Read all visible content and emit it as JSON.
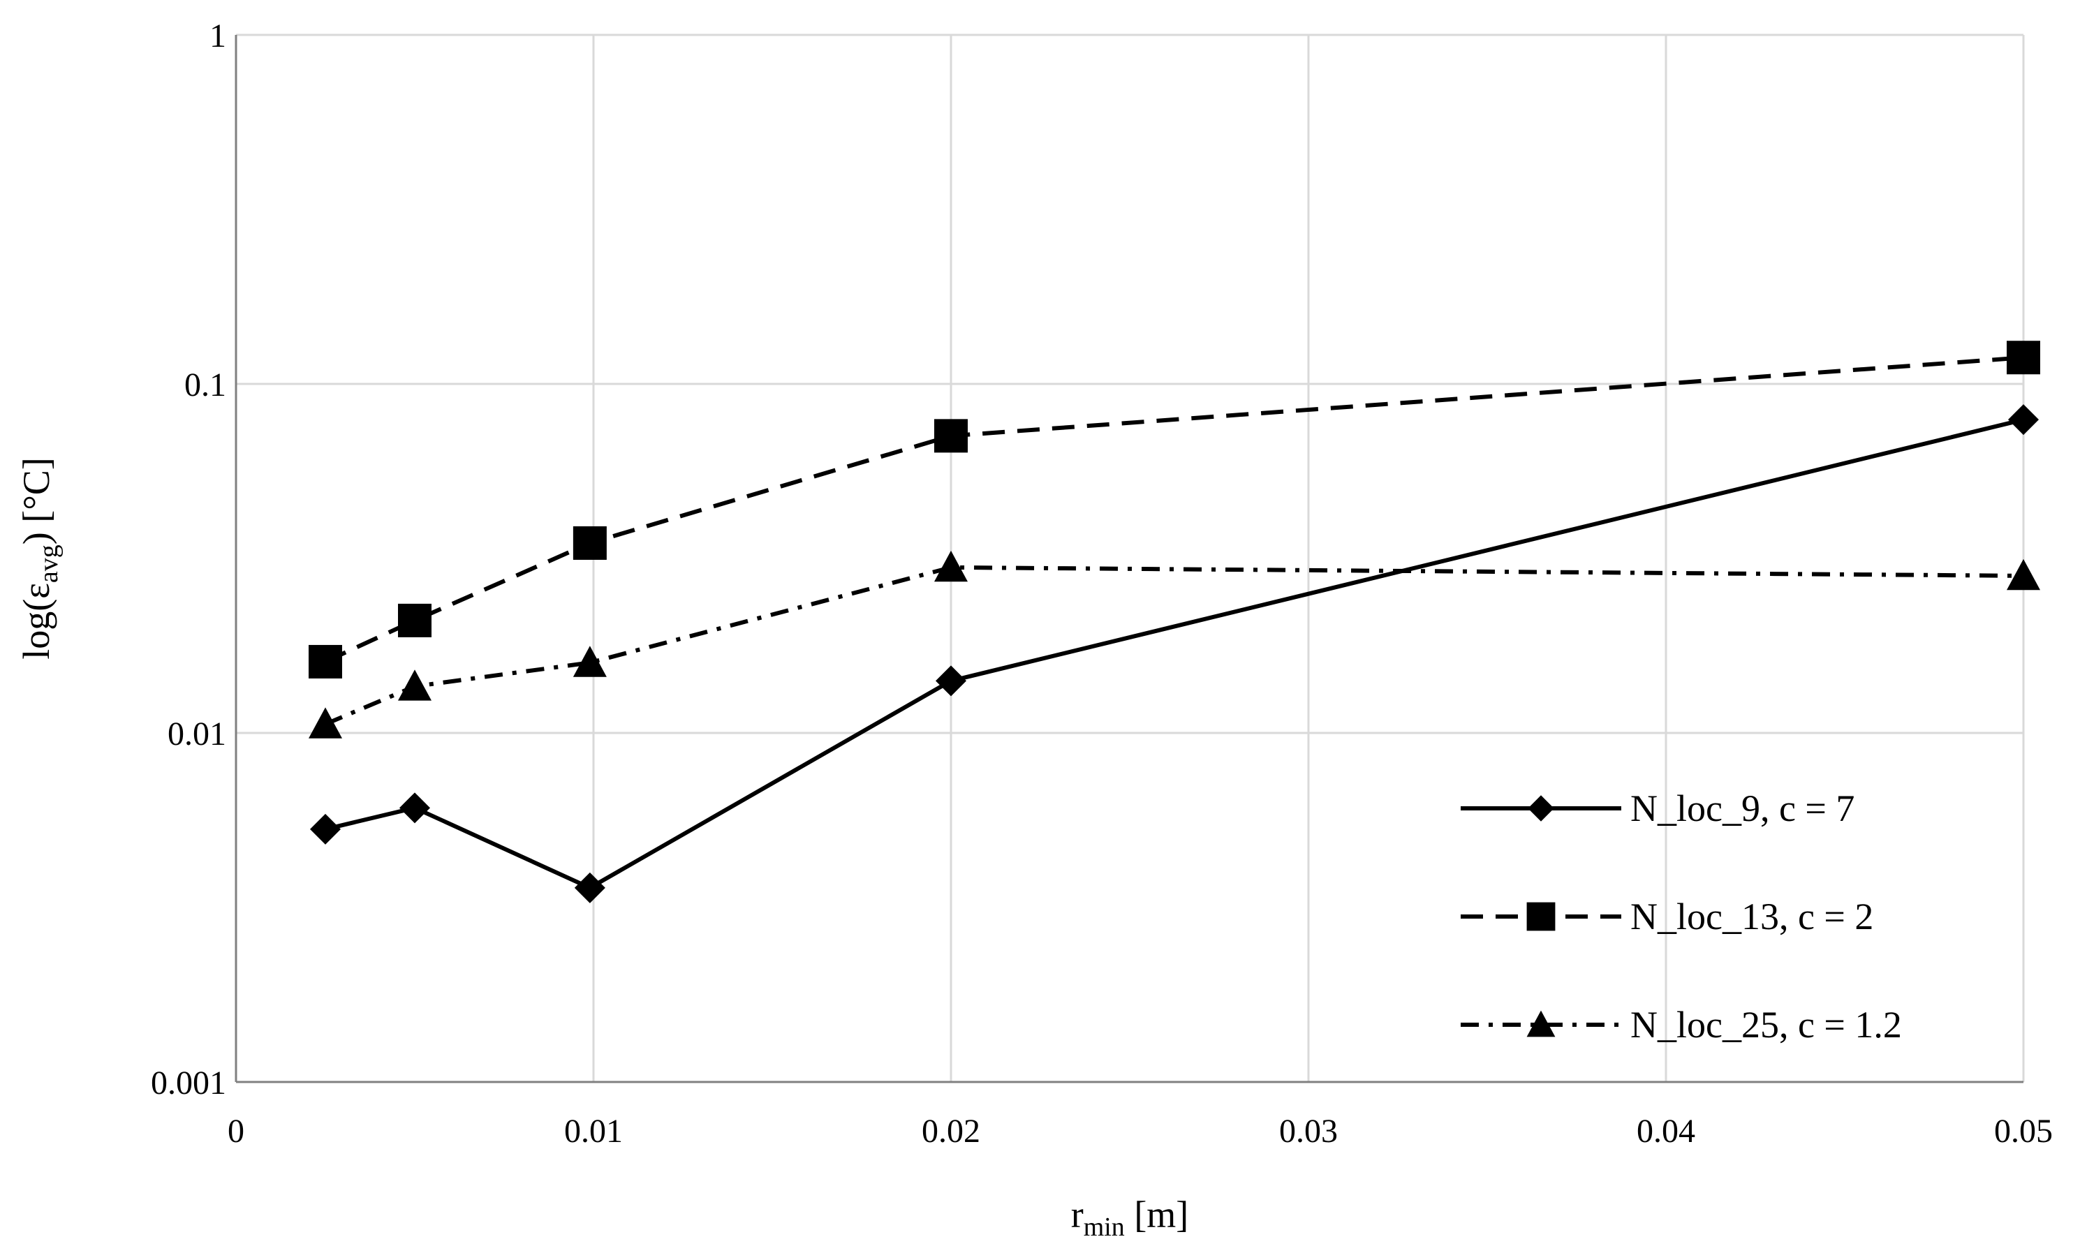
{
  "chart_data": {
    "type": "line",
    "xlabel": {
      "main": "r",
      "sub": "min",
      "rest": " [m]"
    },
    "ylabel": {
      "prefix": "log(ε",
      "sub": "avg",
      "suffix": ") [°C]"
    },
    "x_scale": "linear",
    "y_scale": "log",
    "xlim": [
      0,
      0.05
    ],
    "ylim": [
      0.001,
      1
    ],
    "x_ticks": [
      0,
      0.01,
      0.02,
      0.03,
      0.04,
      0.05
    ],
    "x_tick_labels": [
      "0",
      "0.01",
      "0.02",
      "0.03",
      "0.04",
      "0.05"
    ],
    "y_ticks": [
      0.001,
      0.01,
      0.1,
      1
    ],
    "y_tick_labels": [
      "0.001",
      "0.01",
      "0.1",
      "1"
    ],
    "grid": true,
    "legend_position": "bottom-right",
    "series": [
      {
        "name": "N_loc_9, c = 7",
        "line_style": "solid",
        "marker": "diamond",
        "x": [
          0.0025,
          0.005,
          0.0099,
          0.02,
          0.05
        ],
        "y": [
          0.0053,
          0.0061,
          0.0036,
          0.0141,
          0.079
        ]
      },
      {
        "name": "N_loc_13, c = 2",
        "line_style": "dashed",
        "marker": "square",
        "x": [
          0.0025,
          0.005,
          0.0099,
          0.02,
          0.05
        ],
        "y": [
          0.016,
          0.021,
          0.035,
          0.071,
          0.119
        ]
      },
      {
        "name": "N_loc_25, c = 1.2",
        "line_style": "dashdot",
        "marker": "triangle",
        "x": [
          0.0025,
          0.005,
          0.0099,
          0.02,
          0.05
        ],
        "y": [
          0.0106,
          0.0136,
          0.0159,
          0.0298,
          0.0282
        ]
      }
    ],
    "colors": {
      "line": "#000000",
      "grid": "#d9d9d9",
      "axis": "#808080"
    }
  }
}
